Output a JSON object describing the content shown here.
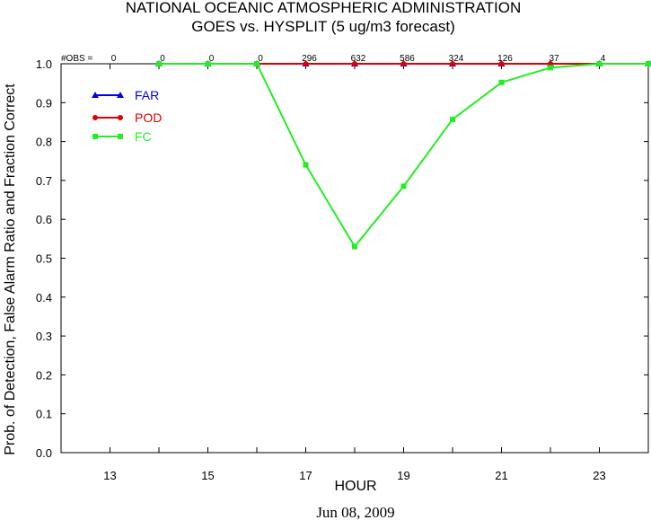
{
  "chart_data": {
    "type": "line",
    "title": "NATIONAL OCEANIC ATMOSPHERIC ADMINISTRATION",
    "subtitle": "GOES vs. HYSPLIT  (5 ug/m3 forecast)",
    "xlabel": "HOUR",
    "ylabel": "Prob. of Detection, False Alarm Ratio and Fraction Correct",
    "date_label": "Jun 08, 2009",
    "xlim": [
      12,
      24
    ],
    "ylim": [
      0,
      1
    ],
    "x_ticks": [
      13,
      15,
      17,
      19,
      21,
      23
    ],
    "y_ticks": [
      "0.0",
      "0.1",
      "0.2",
      "0.3",
      "0.4",
      "0.5",
      "0.6",
      "0.7",
      "0.8",
      "0.9",
      "1.0"
    ],
    "obs_label": "#OBS =",
    "obs": [
      {
        "x": 13,
        "n": "0"
      },
      {
        "x": 14,
        "n": "0"
      },
      {
        "x": 15,
        "n": "0"
      },
      {
        "x": 16,
        "n": "0"
      },
      {
        "x": 17,
        "n": "296"
      },
      {
        "x": 18,
        "n": "632"
      },
      {
        "x": 19,
        "n": "586"
      },
      {
        "x": 20,
        "n": "324"
      },
      {
        "x": 21,
        "n": "126"
      },
      {
        "x": 22,
        "n": "37"
      },
      {
        "x": 23,
        "n": "4"
      }
    ],
    "legend_placement": "top-left",
    "grid": false,
    "series": [
      {
        "name": "FAR",
        "color": "#0000e0",
        "marker": "triangle",
        "x": [
          14,
          15,
          16,
          17,
          18,
          19,
          20,
          21,
          22,
          23,
          24
        ],
        "values": [
          1.0,
          1.0,
          1.0,
          1.0,
          1.0,
          1.0,
          1.0,
          1.0,
          1.0,
          1.0,
          1.0
        ]
      },
      {
        "name": "POD",
        "color": "#e00000",
        "marker": "circle",
        "x": [
          14,
          15,
          16,
          17,
          18,
          19,
          20,
          21,
          22,
          23,
          24
        ],
        "values": [
          1.0,
          1.0,
          1.0,
          1.0,
          1.0,
          1.0,
          1.0,
          1.0,
          1.0,
          1.0,
          1.0
        ]
      },
      {
        "name": "FC",
        "color": "#22ee22",
        "marker": "square",
        "x": [
          14,
          15,
          16,
          17,
          18,
          19,
          20,
          21,
          22,
          23,
          24
        ],
        "values": [
          1.0,
          1.0,
          1.0,
          0.74,
          0.53,
          0.685,
          0.857,
          0.952,
          0.99,
          1.0,
          1.0
        ]
      }
    ]
  }
}
